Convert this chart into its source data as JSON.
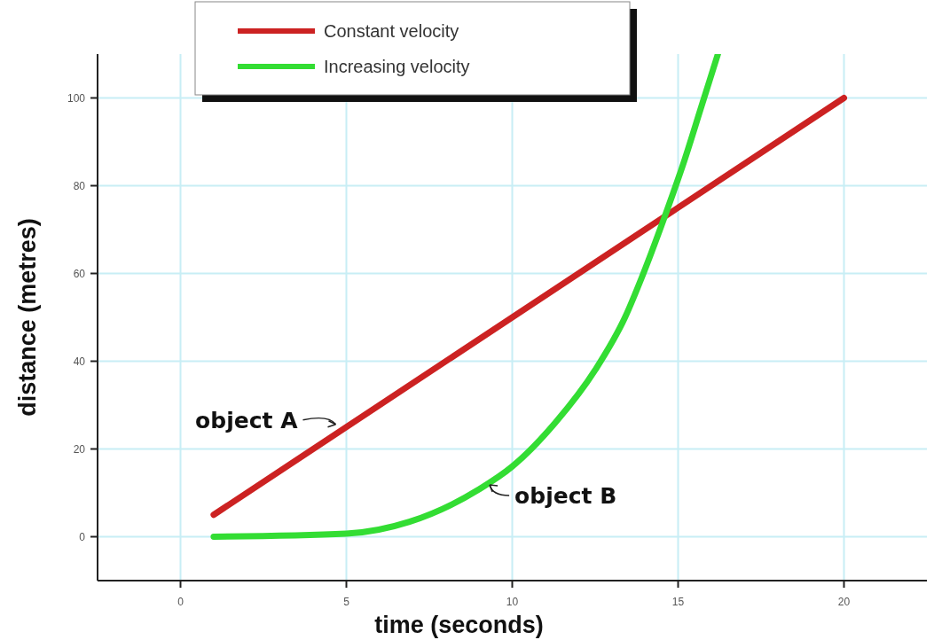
{
  "chart_data": {
    "type": "line",
    "xlabel": "time (seconds)",
    "ylabel": "distance (metres)",
    "xlim": [
      -2.5,
      22.5
    ],
    "xticks": [
      0,
      5,
      10,
      15,
      20
    ],
    "ylim": [
      -10,
      110
    ],
    "yticks": [
      0,
      20,
      40,
      60,
      80,
      100
    ],
    "grid": true,
    "legend": "top left",
    "line_style": "solid",
    "marker": "none",
    "series": [
      {
        "name": "Constant velocity",
        "color": "#cc2222",
        "x": [
          1,
          20
        ],
        "values": [
          5,
          100
        ]
      },
      {
        "name": "Increasing velocity",
        "color": "#33dd33",
        "x": [
          1,
          5,
          6.9,
          9,
          10,
          11.3,
          12.5,
          13.4,
          13.9,
          14.55,
          15.2,
          15.7,
          16.2
        ],
        "values": [
          0,
          0.7,
          3.4,
          10.8,
          16,
          26,
          38,
          50,
          59,
          72,
          86,
          98,
          110
        ]
      }
    ],
    "annotations": [
      {
        "text": "object A",
        "x": 5,
        "y": 25
      },
      {
        "text": "object B",
        "x": 9,
        "y": 11
      }
    ]
  }
}
